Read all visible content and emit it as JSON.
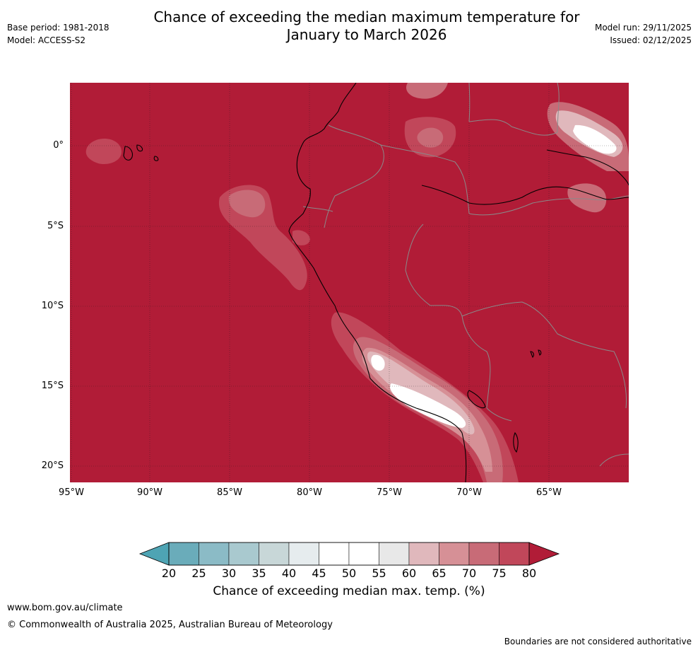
{
  "header": {
    "title_line1": "Chance of exceeding the median maximum temperature for",
    "title_line2": "January to March 2026",
    "base_period": "Base period: 1981-2018",
    "model": "Model: ACCESS-S2",
    "model_run": "Model run: 29/11/2025",
    "issued": "Issued: 02/12/2025"
  },
  "map": {
    "lat_labels": [
      "0°",
      "5°S",
      "10°S",
      "15°S",
      "20°S"
    ],
    "lon_labels": [
      "95°W",
      "90°W",
      "85°W",
      "80°W",
      "75°W",
      "70°W",
      "65°W"
    ],
    "extent": {
      "lon_min": -95,
      "lon_max": -60,
      "lat_min": -21,
      "lat_max": 4
    },
    "background_category": "80+",
    "colors": {
      "c80plus": "#b11c37",
      "c75": "#c1475a",
      "c70": "#c86b77",
      "c65": "#d69096",
      "c60": "#e0b8bc",
      "c55": "#e8e8e8",
      "c50": "#ffffff"
    }
  },
  "colorbar": {
    "ticks": [
      "20",
      "25",
      "30",
      "35",
      "40",
      "45",
      "50",
      "55",
      "60",
      "65",
      "70",
      "75",
      "80"
    ],
    "colors": [
      "#6aacba",
      "#8bbbc6",
      "#a9c9cf",
      "#c8d7d8",
      "#e6ecee",
      "#ffffff",
      "#ffffff",
      "#e8e8e8",
      "#e0b8bc",
      "#d69096",
      "#c86b77",
      "#c1475a"
    ],
    "under_color": "#4ea4b4",
    "over_color": "#b11c37",
    "label": "Chance of exceeding median max. temp. (%)"
  },
  "footer": {
    "url": "www.bom.gov.au/climate",
    "copyright": "© Commonwealth of Australia 2025, Australian Bureau of Meteorology",
    "disclaimer": "Boundaries are not considered authoritative"
  }
}
